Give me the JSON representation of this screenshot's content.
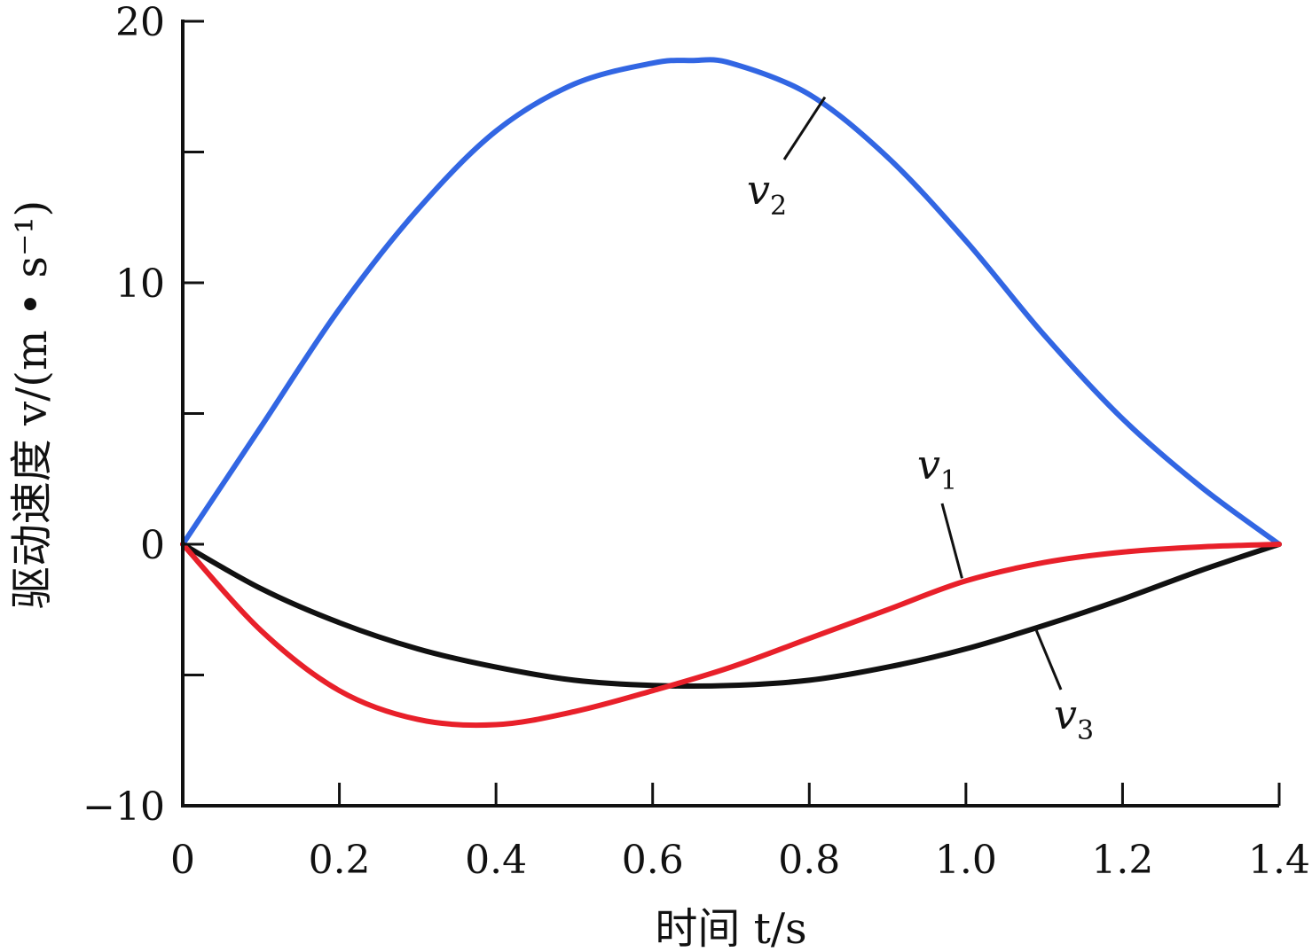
{
  "chart_data": {
    "type": "line",
    "xlabel": "时间 t/s",
    "ylabel": "驱动速度 v/(m • s⁻¹)",
    "xlim": [
      0,
      1.4
    ],
    "ylim": [
      -10,
      20
    ],
    "xticks": [
      0,
      0.2,
      0.4,
      0.6,
      0.8,
      1.0,
      1.2,
      1.4
    ],
    "xtick_labels": [
      "0",
      "0.2",
      "0.4",
      "0.6",
      "0.8",
      "1.0",
      "1.2",
      "1.4"
    ],
    "yticks": [
      -10,
      -5,
      0,
      5,
      10,
      15,
      20
    ],
    "ytick_labels": [
      "−10",
      "",
      "0",
      "",
      "10",
      "",
      "20"
    ],
    "grid": false,
    "series": [
      {
        "name": "v1",
        "label_main": "v",
        "label_sub": "1",
        "color": "#e8202a",
        "x": [
          0,
          0.1,
          0.2,
          0.3,
          0.4,
          0.5,
          0.6,
          0.7,
          0.8,
          0.9,
          1.0,
          1.1,
          1.2,
          1.3,
          1.4
        ],
        "y": [
          0,
          -3.3,
          -5.6,
          -6.7,
          -6.9,
          -6.4,
          -5.6,
          -4.7,
          -3.6,
          -2.5,
          -1.4,
          -0.7,
          -0.3,
          -0.1,
          0
        ]
      },
      {
        "name": "v2",
        "label_main": "v",
        "label_sub": "2",
        "color": "#3266e3",
        "x": [
          0,
          0.1,
          0.2,
          0.3,
          0.4,
          0.5,
          0.6,
          0.65,
          0.7,
          0.8,
          0.9,
          1.0,
          1.1,
          1.2,
          1.3,
          1.4
        ],
        "y": [
          0,
          4.5,
          9.0,
          12.8,
          15.8,
          17.6,
          18.4,
          18.5,
          18.4,
          17.2,
          14.8,
          11.6,
          8.0,
          4.8,
          2.2,
          0
        ]
      },
      {
        "name": "v3",
        "label_main": "v",
        "label_sub": "3",
        "color": "#111111",
        "x": [
          0,
          0.1,
          0.2,
          0.3,
          0.4,
          0.5,
          0.6,
          0.7,
          0.8,
          0.9,
          1.0,
          1.1,
          1.2,
          1.3,
          1.4
        ],
        "y": [
          0,
          -1.7,
          -3.0,
          -4.0,
          -4.7,
          -5.2,
          -5.4,
          -5.4,
          -5.2,
          -4.7,
          -4.0,
          -3.1,
          -2.1,
          -1.0,
          0
        ]
      }
    ],
    "annotations": [
      {
        "series": "v2",
        "point_x": 0.82,
        "point_y": 17.1
      },
      {
        "series": "v1",
        "point_x": 0.995,
        "point_y": -1.3
      },
      {
        "series": "v3",
        "point_x": 1.09,
        "point_y": -3.3
      }
    ]
  }
}
